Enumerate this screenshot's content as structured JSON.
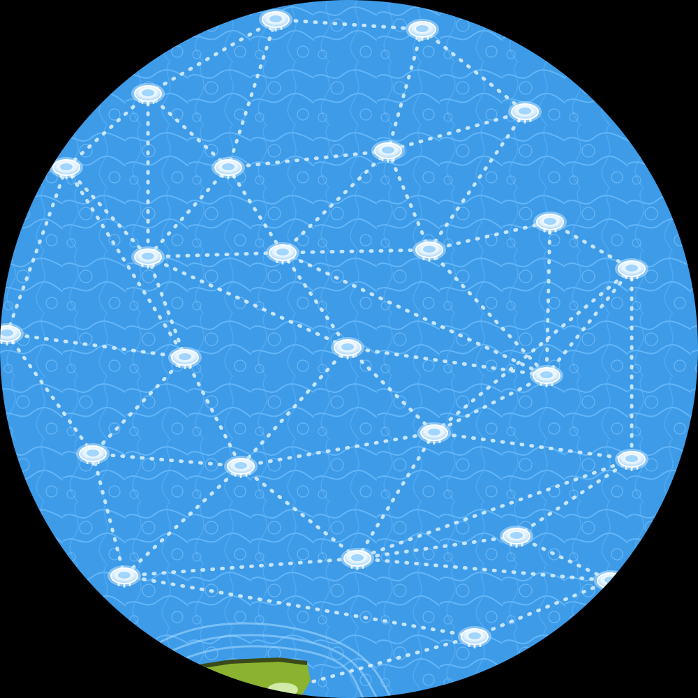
{
  "map": {
    "colors": {
      "background": "#000000",
      "water": "#3d9be8",
      "water_light": "#6fc0ff",
      "path": "#dff1ff",
      "node_fill": "#ffffff",
      "island_grass": "#8bb32f",
      "island_dark": "#3a4a1a"
    },
    "nodes": [
      {
        "id": "n1",
        "icon": "water-node-icon"
      },
      {
        "id": "n2",
        "icon": "water-node-icon"
      },
      {
        "id": "n3",
        "icon": "water-node-icon"
      },
      {
        "id": "n4",
        "icon": "water-node-icon"
      },
      {
        "id": "n5",
        "icon": "water-node-icon"
      },
      {
        "id": "n6",
        "icon": "water-node-icon"
      },
      {
        "id": "n7",
        "icon": "water-node-icon"
      },
      {
        "id": "n8",
        "icon": "water-node-icon"
      },
      {
        "id": "n9",
        "icon": "water-node-icon"
      },
      {
        "id": "n10",
        "icon": "water-node-icon"
      },
      {
        "id": "n11",
        "icon": "water-node-icon"
      },
      {
        "id": "n12",
        "icon": "water-node-icon"
      },
      {
        "id": "n13",
        "icon": "water-node-icon"
      },
      {
        "id": "n14",
        "icon": "water-node-icon"
      },
      {
        "id": "n15",
        "icon": "water-node-icon"
      },
      {
        "id": "n16",
        "icon": "water-node-icon"
      },
      {
        "id": "n17",
        "icon": "water-node-icon"
      },
      {
        "id": "n18",
        "icon": "water-node-icon"
      },
      {
        "id": "n19",
        "icon": "water-node-icon"
      },
      {
        "id": "n20",
        "icon": "water-node-icon"
      },
      {
        "id": "n21",
        "icon": "water-node-icon"
      },
      {
        "id": "n22",
        "icon": "water-node-icon"
      },
      {
        "id": "n23",
        "icon": "water-node-icon"
      },
      {
        "id": "n24",
        "icon": "water-node-icon"
      },
      {
        "id": "n25",
        "icon": "water-node-icon"
      },
      {
        "id": "n26",
        "icon": "water-node-icon"
      }
    ],
    "edges": [
      [
        "n1",
        "n2"
      ],
      [
        "n1",
        "n3"
      ],
      [
        "n1",
        "n5"
      ],
      [
        "n2",
        "n6"
      ],
      [
        "n2",
        "n4"
      ],
      [
        "n3",
        "n5"
      ],
      [
        "n3",
        "n7"
      ],
      [
        "n3",
        "n8"
      ],
      [
        "n4",
        "n6"
      ],
      [
        "n4",
        "n10"
      ],
      [
        "n5",
        "n6"
      ],
      [
        "n5",
        "n9"
      ],
      [
        "n5",
        "n8"
      ],
      [
        "n6",
        "n10"
      ],
      [
        "n6",
        "n9"
      ],
      [
        "n7",
        "n8"
      ],
      [
        "n7",
        "n12"
      ],
      [
        "n7",
        "n13"
      ],
      [
        "n8",
        "n9"
      ],
      [
        "n8",
        "n13"
      ],
      [
        "n8",
        "n14"
      ],
      [
        "n9",
        "n10"
      ],
      [
        "n9",
        "n14"
      ],
      [
        "n9",
        "n15"
      ],
      [
        "n10",
        "n11"
      ],
      [
        "n10",
        "n15"
      ],
      [
        "n11",
        "n15"
      ],
      [
        "n11",
        "n18"
      ],
      [
        "n12",
        "n13"
      ],
      [
        "n12",
        "n16"
      ],
      [
        "n13",
        "n16"
      ],
      [
        "n13",
        "n17"
      ],
      [
        "n14",
        "n15"
      ],
      [
        "n14",
        "n17"
      ],
      [
        "n14",
        "n19"
      ],
      [
        "n15",
        "n18"
      ],
      [
        "n15",
        "n19"
      ],
      [
        "n16",
        "n17"
      ],
      [
        "n16",
        "n21"
      ],
      [
        "n17",
        "n19"
      ],
      [
        "n17",
        "n21"
      ],
      [
        "n17",
        "n22"
      ],
      [
        "n18",
        "n19"
      ],
      [
        "n18",
        "n20"
      ],
      [
        "n19",
        "n20"
      ],
      [
        "n19",
        "n22"
      ],
      [
        "n20",
        "n22"
      ],
      [
        "n20",
        "n23"
      ],
      [
        "n21",
        "n22"
      ],
      [
        "n21",
        "n24"
      ],
      [
        "n22",
        "n23"
      ],
      [
        "n22",
        "n25"
      ],
      [
        "n23",
        "n25"
      ],
      [
        "n24",
        "n25"
      ],
      [
        "n24",
        "n26"
      ]
    ]
  }
}
